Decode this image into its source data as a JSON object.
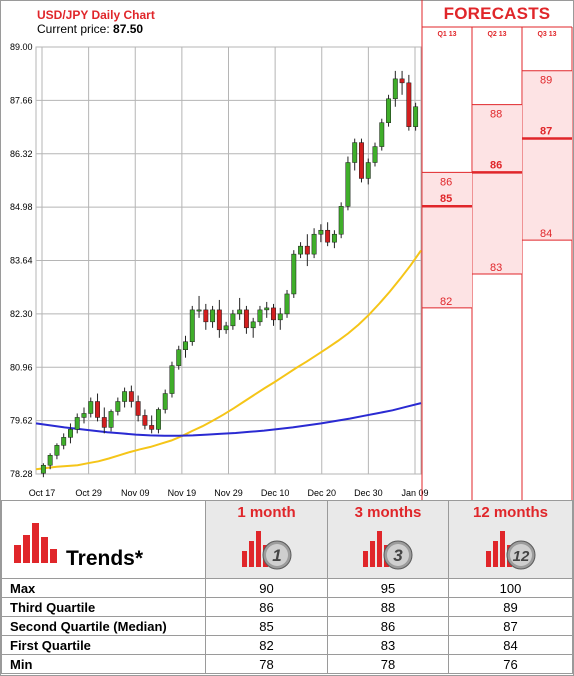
{
  "chart_title": "USD/JPY Daily Chart",
  "price_label": "Current price:",
  "price_value": "87.50",
  "forecast_title": "FORECASTS",
  "chart_data": [
    {
      "type": "candlestick",
      "title": "USD/JPY Daily Chart",
      "ylim": [
        78.28,
        89.0
      ],
      "y_ticks": [
        "89.00",
        "87.66",
        "86.32",
        "84.98",
        "83.64",
        "82.30",
        "80.96",
        "79.62",
        "78.28"
      ],
      "x_ticks": [
        "Oct 17",
        "Oct 29",
        "Nov 09",
        "Nov 19",
        "Nov 29",
        "Dec 10",
        "Dec 20",
        "Dec 30",
        "Jan 09"
      ],
      "grid": true,
      "candles": [
        [
          78.3,
          78.55,
          78.2,
          78.5
        ],
        [
          78.5,
          78.8,
          78.4,
          78.75
        ],
        [
          78.75,
          79.05,
          78.65,
          79.0
        ],
        [
          79.0,
          79.3,
          78.9,
          79.2
        ],
        [
          79.2,
          79.55,
          79.05,
          79.4
        ],
        [
          79.4,
          79.8,
          79.3,
          79.7
        ],
        [
          79.7,
          79.95,
          79.55,
          79.8
        ],
        [
          79.8,
          80.2,
          79.7,
          80.1
        ],
        [
          80.1,
          80.3,
          79.6,
          79.7
        ],
        [
          79.7,
          79.95,
          79.3,
          79.45
        ],
        [
          79.45,
          79.9,
          79.35,
          79.85
        ],
        [
          79.85,
          80.2,
          79.75,
          80.1
        ],
        [
          80.1,
          80.45,
          79.95,
          80.35
        ],
        [
          80.35,
          80.5,
          79.95,
          80.1
        ],
        [
          80.1,
          80.25,
          79.6,
          79.75
        ],
        [
          79.75,
          79.9,
          79.4,
          79.5
        ],
        [
          79.5,
          79.75,
          79.3,
          79.4
        ],
        [
          79.4,
          79.95,
          79.3,
          79.9
        ],
        [
          79.9,
          80.4,
          79.8,
          80.3
        ],
        [
          80.3,
          81.1,
          80.2,
          81.0
        ],
        [
          81.0,
          81.5,
          80.9,
          81.4
        ],
        [
          81.4,
          81.75,
          81.2,
          81.6
        ],
        [
          81.6,
          82.5,
          81.5,
          82.4
        ],
        [
          82.4,
          82.75,
          82.2,
          82.4
        ],
        [
          82.4,
          82.55,
          81.9,
          82.1
        ],
        [
          82.1,
          82.5,
          81.95,
          82.4
        ],
        [
          82.4,
          82.65,
          81.7,
          81.9
        ],
        [
          81.9,
          82.1,
          81.8,
          82.0
        ],
        [
          82.0,
          82.4,
          81.9,
          82.3
        ],
        [
          82.3,
          82.7,
          82.15,
          82.4
        ],
        [
          82.4,
          82.5,
          81.8,
          81.95
        ],
        [
          81.95,
          82.2,
          81.7,
          82.1
        ],
        [
          82.1,
          82.5,
          82.0,
          82.4
        ],
        [
          82.4,
          82.6,
          82.2,
          82.45
        ],
        [
          82.45,
          82.55,
          82.0,
          82.15
        ],
        [
          82.15,
          82.45,
          81.9,
          82.3
        ],
        [
          82.3,
          82.9,
          82.2,
          82.8
        ],
        [
          82.8,
          83.9,
          82.7,
          83.8
        ],
        [
          83.8,
          84.1,
          83.7,
          84.0
        ],
        [
          84.0,
          84.3,
          83.5,
          83.8
        ],
        [
          83.8,
          84.45,
          83.7,
          84.3
        ],
        [
          84.3,
          84.55,
          84.1,
          84.4
        ],
        [
          84.4,
          84.6,
          84.0,
          84.1
        ],
        [
          84.1,
          84.4,
          83.95,
          84.3
        ],
        [
          84.3,
          85.1,
          84.2,
          85.0
        ],
        [
          85.0,
          86.25,
          84.9,
          86.1
        ],
        [
          86.1,
          86.7,
          85.9,
          86.6
        ],
        [
          86.6,
          86.7,
          85.6,
          85.7
        ],
        [
          85.7,
          86.2,
          85.55,
          86.1
        ],
        [
          86.1,
          86.6,
          86.0,
          86.5
        ],
        [
          86.5,
          87.2,
          86.4,
          87.1
        ],
        [
          87.1,
          87.8,
          87.0,
          87.7
        ],
        [
          87.7,
          88.4,
          87.5,
          88.2
        ],
        [
          88.2,
          88.4,
          87.8,
          88.1
        ],
        [
          88.1,
          88.3,
          86.9,
          87.0
        ],
        [
          87.0,
          87.6,
          86.9,
          87.5
        ]
      ],
      "moving_averages": [
        {
          "color": "#f5c518",
          "values": [
            78.4,
            78.43,
            78.46,
            78.48,
            78.5,
            78.55,
            78.6,
            78.67,
            78.75,
            78.83,
            78.9,
            78.96,
            79.04,
            79.12,
            79.23,
            79.36,
            79.48,
            79.62,
            79.77,
            79.93,
            80.1,
            80.27,
            80.44,
            80.6,
            80.77,
            80.94,
            81.1,
            81.27,
            81.44,
            81.62,
            81.81,
            82.03,
            82.28,
            82.56,
            82.86,
            83.18,
            83.52,
            83.89
          ]
        },
        {
          "color": "#2a2ad2",
          "values": [
            79.55,
            79.5,
            79.45,
            79.41,
            79.37,
            79.33,
            79.3,
            79.27,
            79.25,
            79.24,
            79.24,
            79.25,
            79.27,
            79.29,
            79.31,
            79.34,
            79.37,
            79.41,
            79.45,
            79.5,
            79.55,
            79.61,
            79.67,
            79.74,
            79.81,
            79.88,
            79.97,
            80.06
          ]
        }
      ]
    },
    {
      "type": "forecast-ranges",
      "columns": [
        {
          "label": "Q1 13",
          "max": "86",
          "median": "85",
          "min": "82"
        },
        {
          "label": "Q2 13",
          "max": "88",
          "median": "86",
          "min": "83"
        },
        {
          "label": "Q3 13",
          "max": "89",
          "median": "87",
          "min": "84"
        }
      ]
    }
  ],
  "table": {
    "header_label": "Trends*",
    "columns": [
      {
        "title": "1 month",
        "icon_number": "1"
      },
      {
        "title": "3 months",
        "icon_number": "3"
      },
      {
        "title": "12 months",
        "icon_number": "12"
      }
    ],
    "rows": [
      {
        "label": "Max",
        "values": [
          "90",
          "95",
          "100"
        ]
      },
      {
        "label": "Third Quartile",
        "values": [
          "86",
          "88",
          "89"
        ]
      },
      {
        "label": "Second Quartile (Median)",
        "values": [
          "85",
          "86",
          "87"
        ]
      },
      {
        "label": "First Quartile",
        "values": [
          "82",
          "83",
          "84"
        ]
      },
      {
        "label": "Min",
        "values": [
          "78",
          "78",
          "76"
        ]
      }
    ]
  }
}
